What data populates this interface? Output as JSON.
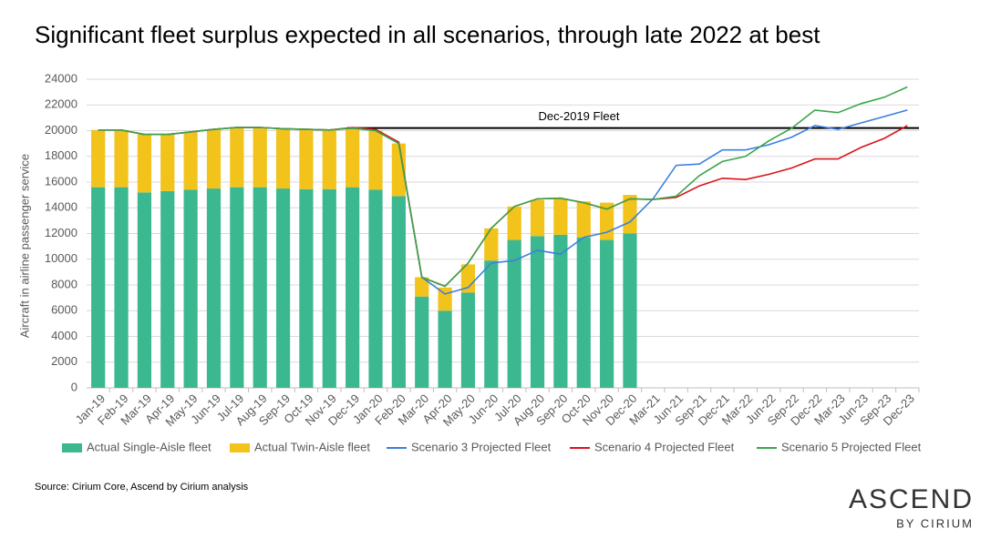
{
  "chart_data": {
    "type": "bar",
    "title": "Significant fleet surplus expected in all scenarios, through late 2022 at best",
    "y_label": "Aircraft in airline passenger service",
    "source": "Source: Cirium Core, Ascend by Cirium analysis",
    "logo": {
      "name": "ASCEND",
      "tagline": "BY CIRIUM"
    },
    "reference": {
      "label": "Dec-2019 Fleet",
      "value": 20200,
      "color": "#000000"
    },
    "categories": [
      "Jan-19",
      "Feb-19",
      "Mar-19",
      "Apr-19",
      "May-19",
      "Jun-19",
      "Jul-19",
      "Aug-19",
      "Sep-19",
      "Oct-19",
      "Nov-19",
      "Dec-19",
      "Jan-20",
      "Feb-20",
      "Mar-20",
      "Apr-20",
      "May-20",
      "Jun-20",
      "Jul-20",
      "Aug-20",
      "Sep-20",
      "Oct-20",
      "Nov-20",
      "Dec-20",
      "Mar-21",
      "Jun-21",
      "Sep-21",
      "Dec-21",
      "Mar-22",
      "Jun-22",
      "Sep-22",
      "Dec-22",
      "Mar-23",
      "Jun-23",
      "Sep-23",
      "Dec-23"
    ],
    "series": [
      {
        "name": "Actual Single-Aisle fleet",
        "kind": "bar",
        "color": "#3cb891",
        "values": [
          15600,
          15600,
          15200,
          15300,
          15400,
          15500,
          15600,
          15600,
          15500,
          15450,
          15450,
          15600,
          15400,
          14900,
          7100,
          6000,
          7400,
          9900,
          11500,
          11800,
          11900,
          11700,
          11500,
          12000,
          null,
          null,
          null,
          null,
          null,
          null,
          null,
          null,
          null,
          null,
          null,
          null
        ]
      },
      {
        "name": "Actual Twin-Aisle fleet",
        "kind": "bar",
        "color": "#f2c31b",
        "values": [
          4450,
          4450,
          4500,
          4400,
          4500,
          4600,
          4650,
          4650,
          4650,
          4650,
          4600,
          4600,
          4600,
          4100,
          1500,
          1800,
          2200,
          2500,
          2600,
          2800,
          2800,
          2800,
          2900,
          3000,
          null,
          null,
          null,
          null,
          null,
          null,
          null,
          null,
          null,
          null,
          null,
          null
        ]
      },
      {
        "name": "Scenario 3 Projected Fleet",
        "kind": "line",
        "color": "#3b7fe0",
        "values": [
          20050,
          20050,
          19700,
          19700,
          19900,
          20100,
          20250,
          20250,
          20150,
          20100,
          20050,
          20200,
          20000,
          19000,
          8600,
          7300,
          7800,
          9700,
          9900,
          10700,
          10400,
          11700,
          12100,
          12900,
          14700,
          17300,
          17400,
          18500,
          18500,
          18900,
          19500,
          20400,
          20100,
          20600,
          21100,
          21600
        ]
      },
      {
        "name": "Scenario 4 Projected Fleet",
        "kind": "line",
        "color": "#d9141b",
        "values": [
          20050,
          20050,
          19700,
          19700,
          19900,
          20100,
          20250,
          20250,
          20150,
          20100,
          20050,
          20250,
          20100,
          19100,
          8600,
          7900,
          9700,
          12400,
          14100,
          14700,
          14750,
          14400,
          13900,
          14700,
          14650,
          14800,
          15700,
          16300,
          16200,
          16600,
          17100,
          17800,
          17800,
          18700,
          19400,
          20400
        ]
      },
      {
        "name": "Scenario 5 Projected Fleet",
        "kind": "line",
        "color": "#3aa64a",
        "values": [
          20050,
          20050,
          19700,
          19700,
          19900,
          20100,
          20250,
          20250,
          20150,
          20100,
          20050,
          20200,
          20000,
          19000,
          8600,
          7900,
          9700,
          12400,
          14100,
          14700,
          14750,
          14400,
          13900,
          14700,
          14650,
          14900,
          16500,
          17600,
          18000,
          19200,
          20200,
          21600,
          21400,
          22100,
          22600,
          23400
        ]
      }
    ],
    "ylim": [
      0,
      24000
    ],
    "yticks": [
      0,
      2000,
      4000,
      6000,
      8000,
      10000,
      12000,
      14000,
      16000,
      18000,
      20000,
      22000,
      24000
    ]
  }
}
